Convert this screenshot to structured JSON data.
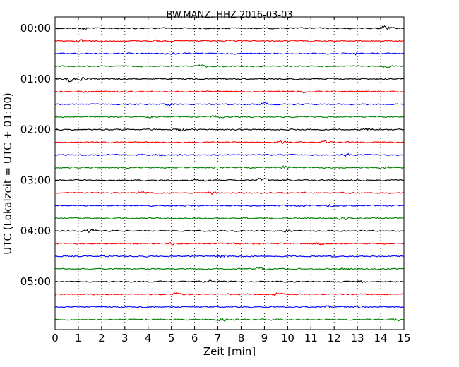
{
  "chart_data": {
    "type": "line",
    "title": "BW.MANZ..HHZ 2016-03-03",
    "xlabel": "Zeit  [min]",
    "ylabel": "UTC (Lokalzeit = UTC + 01:00)",
    "xlim": [
      0,
      15
    ],
    "x_ticks": [
      "0",
      "1",
      "2",
      "3",
      "4",
      "5",
      "6",
      "7",
      "8",
      "9",
      "10",
      "11",
      "12",
      "13",
      "14",
      "15"
    ],
    "y_ticks": [
      "00:00",
      "01:00",
      "02:00",
      "03:00",
      "04:00",
      "05:00"
    ],
    "grid": "vertical dotted at each minute",
    "trace_colors": [
      "#000000",
      "#ff0000",
      "#0000ff",
      "#008000"
    ],
    "series": [
      {
        "start": "00:00",
        "color": "#000000",
        "events": [
          [
            1.3,
            0.6
          ],
          [
            14.2,
            0.8
          ]
        ]
      },
      {
        "start": "00:15",
        "color": "#ff0000",
        "events": [
          [
            1.1,
            0.5
          ],
          [
            4.5,
            0.4
          ]
        ]
      },
      {
        "start": "00:30",
        "color": "#0000ff",
        "events": [
          [
            5.0,
            0.4
          ],
          [
            12.9,
            0.4
          ]
        ]
      },
      {
        "start": "00:45",
        "color": "#008000",
        "events": [
          [
            6.3,
            0.4
          ],
          [
            14.3,
            0.4
          ]
        ]
      },
      {
        "start": "01:00",
        "color": "#000000",
        "events": [
          [
            0.6,
            0.9
          ],
          [
            1.2,
            0.5
          ]
        ]
      },
      {
        "start": "01:15",
        "color": "#ff0000",
        "events": [
          [
            1.2,
            0.4
          ],
          [
            10.6,
            0.4
          ]
        ]
      },
      {
        "start": "01:30",
        "color": "#0000ff",
        "events": [
          [
            5.0,
            0.4
          ],
          [
            9.0,
            0.4
          ]
        ]
      },
      {
        "start": "01:45",
        "color": "#008000",
        "events": [
          [
            4.1,
            0.5
          ],
          [
            6.9,
            0.4
          ]
        ]
      },
      {
        "start": "02:00",
        "color": "#000000",
        "events": [
          [
            5.4,
            0.5
          ],
          [
            13.4,
            0.4
          ]
        ]
      },
      {
        "start": "02:15",
        "color": "#ff0000",
        "events": [
          [
            9.7,
            0.4
          ],
          [
            11.6,
            0.4
          ]
        ]
      },
      {
        "start": "02:30",
        "color": "#0000ff",
        "events": [
          [
            4.5,
            0.4
          ],
          [
            12.5,
            0.4
          ]
        ]
      },
      {
        "start": "02:45",
        "color": "#008000",
        "events": [
          [
            9.9,
            0.6
          ],
          [
            14.2,
            0.5
          ]
        ]
      },
      {
        "start": "03:00",
        "color": "#000000",
        "events": [
          [
            8.9,
            0.6
          ],
          [
            6.4,
            0.4
          ]
        ]
      },
      {
        "start": "03:15",
        "color": "#ff0000",
        "events": [
          [
            3.8,
            0.4
          ],
          [
            6.8,
            0.4
          ]
        ]
      },
      {
        "start": "03:30",
        "color": "#0000ff",
        "events": [
          [
            10.7,
            0.4
          ],
          [
            11.8,
            0.4
          ]
        ]
      },
      {
        "start": "03:45",
        "color": "#008000",
        "events": [
          [
            9.4,
            0.6
          ],
          [
            12.4,
            0.4
          ]
        ]
      },
      {
        "start": "04:00",
        "color": "#000000",
        "events": [
          [
            1.5,
            0.5
          ],
          [
            10.0,
            0.4
          ]
        ]
      },
      {
        "start": "04:15",
        "color": "#ff0000",
        "events": [
          [
            5.0,
            0.4
          ],
          [
            11.4,
            0.4
          ]
        ]
      },
      {
        "start": "04:30",
        "color": "#0000ff",
        "events": [
          [
            7.2,
            0.5
          ],
          [
            12.0,
            0.4
          ]
        ]
      },
      {
        "start": "04:45",
        "color": "#008000",
        "events": [
          [
            8.9,
            0.5
          ],
          [
            12.4,
            0.4
          ]
        ]
      },
      {
        "start": "05:00",
        "color": "#000000",
        "events": [
          [
            6.6,
            0.5
          ],
          [
            13.1,
            0.4
          ]
        ]
      },
      {
        "start": "05:15",
        "color": "#ff0000",
        "events": [
          [
            5.2,
            0.4
          ],
          [
            9.5,
            0.4
          ]
        ]
      },
      {
        "start": "05:30",
        "color": "#0000ff",
        "events": [
          [
            13.1,
            0.5
          ],
          [
            11.7,
            0.4
          ]
        ]
      },
      {
        "start": "05:45",
        "color": "#008000",
        "events": [
          [
            7.2,
            0.4
          ],
          [
            14.6,
            0.4
          ]
        ]
      }
    ]
  }
}
